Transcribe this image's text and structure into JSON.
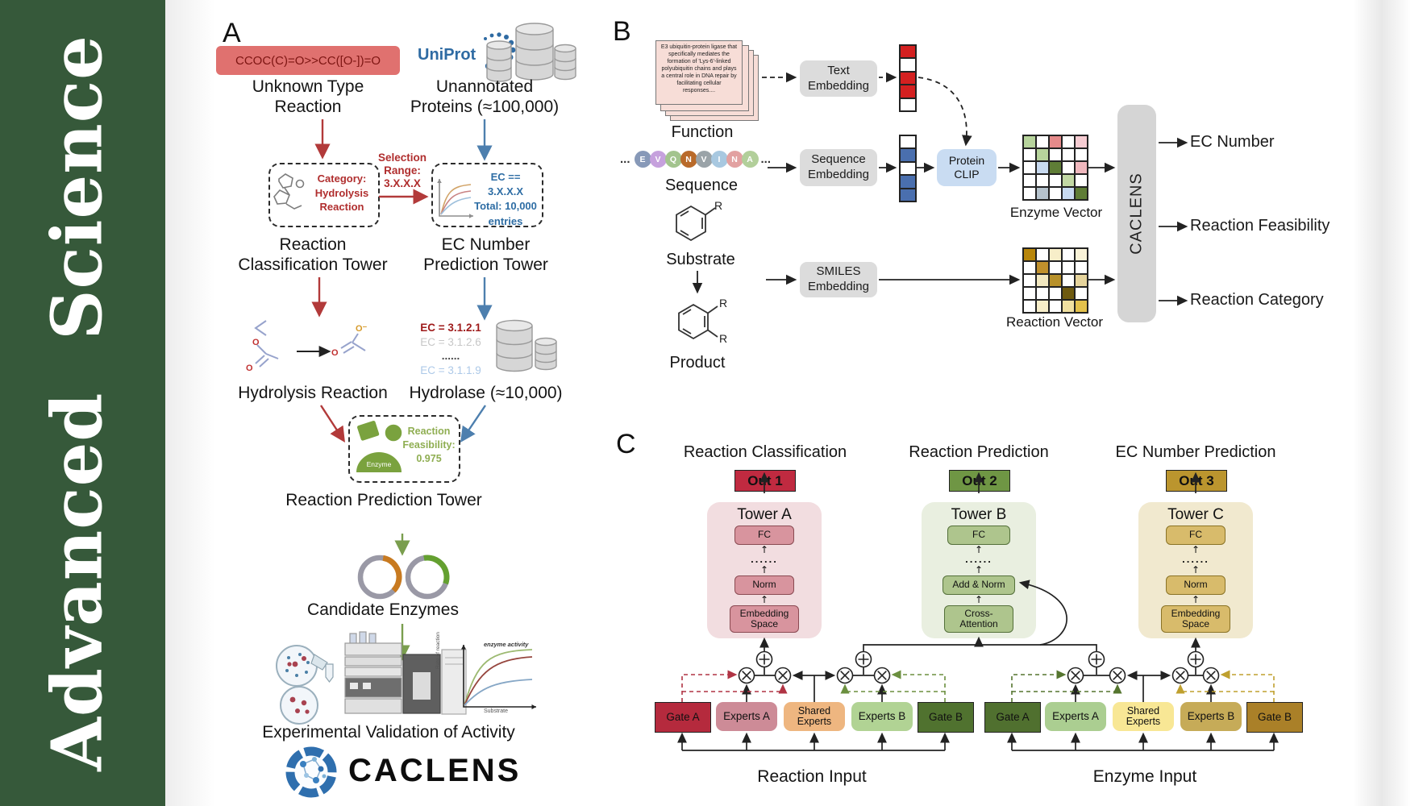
{
  "journal": {
    "title": "Advanced Science"
  },
  "panelA": {
    "label": "A",
    "smiles": "CCOC(C)=O>>CC([O-])=O",
    "unknownReaction": "Unknown Type\nReaction",
    "uniprot": "UniProt",
    "unannotated": "Unannotated\nProteins (≈100,000)",
    "categoryBox": "Category:\nHydrolysis\nReaction",
    "selection": "Selection\nRange:\n3.X.X.X",
    "ecBox": "EC == 3.X.X.X\nTotal: 10,000\nentries",
    "classificationTower": "Reaction\nClassification Tower",
    "ecPredictionTower": "EC Number\nPrediction Tower",
    "ecList": [
      {
        "text": "EC = 3.1.2.1",
        "color": "#9e1a1a",
        "bold": true
      },
      {
        "text": "EC = 3.1.2.6",
        "color": "#c7c7c7",
        "bold": false
      },
      {
        "text": "......",
        "color": "#4a4a4a",
        "bold": true
      },
      {
        "text": "EC = 3.1.1.9",
        "color": "#adc9e8",
        "bold": false
      }
    ],
    "hydrolysisReaction": "Hydrolysis Reaction",
    "hydrolase": "Hydrolase (≈10,000)",
    "enzymeIcon": "Enzyme",
    "feasibility": "Reaction\nFeasibility:\n0.975",
    "reactionPredictionTower": "Reaction Prediction Tower",
    "candidateEnzymes": "Candidate Enzymes",
    "validation": "Experimental Validation of Activity",
    "brand": "CACLENS",
    "atomO": "O",
    "atomOminus": "O⁻",
    "kinetics": {
      "annotation": "enzyme activity",
      "ylabel": "Rate of reaction",
      "xlabel": "Substrate"
    }
  },
  "panelB": {
    "label": "B",
    "functionCard": "E3 ubiquitin-protein ligase that specifically mediates the formation of 'Lys-6'-linked polyubiquitin chains and plays a central role in DNA repair by facilitating cellular responses....",
    "functionLabel": "Function",
    "ellipsisLeft": "...",
    "ellipsisRight": "...",
    "aminoAcids": [
      {
        "letter": "E",
        "color": "#8799b8"
      },
      {
        "letter": "V",
        "color": "#c6a1dd"
      },
      {
        "letter": "Q",
        "color": "#a3c48e"
      },
      {
        "letter": "N",
        "color": "#b96a2a"
      },
      {
        "letter": "V",
        "color": "#9aa3a8"
      },
      {
        "letter": "I",
        "color": "#a8c8e0"
      },
      {
        "letter": "N",
        "color": "#e2a1a1"
      },
      {
        "letter": "A",
        "color": "#b2cf9a"
      }
    ],
    "sequenceLabel": "Sequence",
    "substrateLabel": "Substrate",
    "productLabel": "Product",
    "rLabel": "R",
    "textEmbedding": "Text\nEmbedding",
    "sequenceEmbedding": "Sequence\nEmbedding",
    "smilesEmbedding": "SMILES\nEmbedding",
    "proteinClip": "Protein\nCLIP",
    "textVector": {
      "cols": 1,
      "cells": [
        "#d42020",
        "#ffffff",
        "#d42020",
        "#d42020",
        "#ffffff"
      ]
    },
    "sequenceVector": {
      "cols": 1,
      "cells": [
        "#ffffff",
        "#4a6fae",
        "#ffffff",
        "#4a6fae",
        "#4a6fae"
      ]
    },
    "enzymeVector": {
      "label": "Enzyme Vector",
      "cols": 5,
      "cells": [
        "#b7d49c",
        "#ffffff",
        "#e58a8a",
        "#ffffff",
        "#f6ccd2",
        "#ffffff",
        "#b7d49c",
        "#ffffff",
        "#ffffff",
        "#ffffff",
        "#ffffff",
        "#c8daf0",
        "#5f7d36",
        "#ffffff",
        "#f0b8be",
        "#ffffff",
        "#ffffff",
        "#ffffff",
        "#c2d8a4",
        "#ffffff",
        "#ffffff",
        "#b6c3cd",
        "#ffffff",
        "#c8daf0",
        "#5f7d36"
      ]
    },
    "reactionVector": {
      "label": "Reaction Vector",
      "cols": 5,
      "cells": [
        "#b8860b",
        "#ffffff",
        "#f7eec9",
        "#ffffff",
        "#faf3d8",
        "#ffffff",
        "#c0902c",
        "#ffffff",
        "#ffffff",
        "#ffffff",
        "#ffffff",
        "#f2e8c0",
        "#b8912a",
        "#ffffff",
        "#e6d49c",
        "#ffffff",
        "#ffffff",
        "#ffffff",
        "#6e5a10",
        "#ffffff",
        "#ffffff",
        "#f7eec9",
        "#ffffff",
        "#f0e0a0",
        "#e3c14c"
      ]
    },
    "caclens": "CACLENS",
    "outputs": [
      "EC Number",
      "Reaction Feasibility",
      "Reaction Category"
    ]
  },
  "panelC": {
    "label": "C",
    "headings": [
      "Reaction Classification",
      "Reaction Prediction",
      "EC Number Prediction"
    ],
    "towers": [
      {
        "out": "Out 1",
        "name": "Tower A",
        "fc": "FC",
        "dots": "......",
        "mid": "Norm",
        "bottom": "Embedding\nSpace"
      },
      {
        "out": "Out 2",
        "name": "Tower B",
        "fc": "FC",
        "dots": "......",
        "mid": "Add & Norm",
        "bottom": "Cross-\nAttention"
      },
      {
        "out": "Out 3",
        "name": "Tower C",
        "fc": "FC",
        "dots": "......",
        "mid": "Norm",
        "bottom": "Embedding\nSpace"
      }
    ],
    "groups": [
      {
        "gateA": "Gate A",
        "expertsA": "Experts A",
        "shared": "Shared\nExperts",
        "expertsB": "Experts B",
        "gateB": "Gate B",
        "input": "Reaction Input"
      },
      {
        "gateA": "Gate A",
        "expertsA": "Experts A",
        "shared": "Shared\nExperts",
        "expertsB": "Experts B",
        "gateB": "Gate B",
        "input": "Enzyme Input"
      }
    ]
  }
}
